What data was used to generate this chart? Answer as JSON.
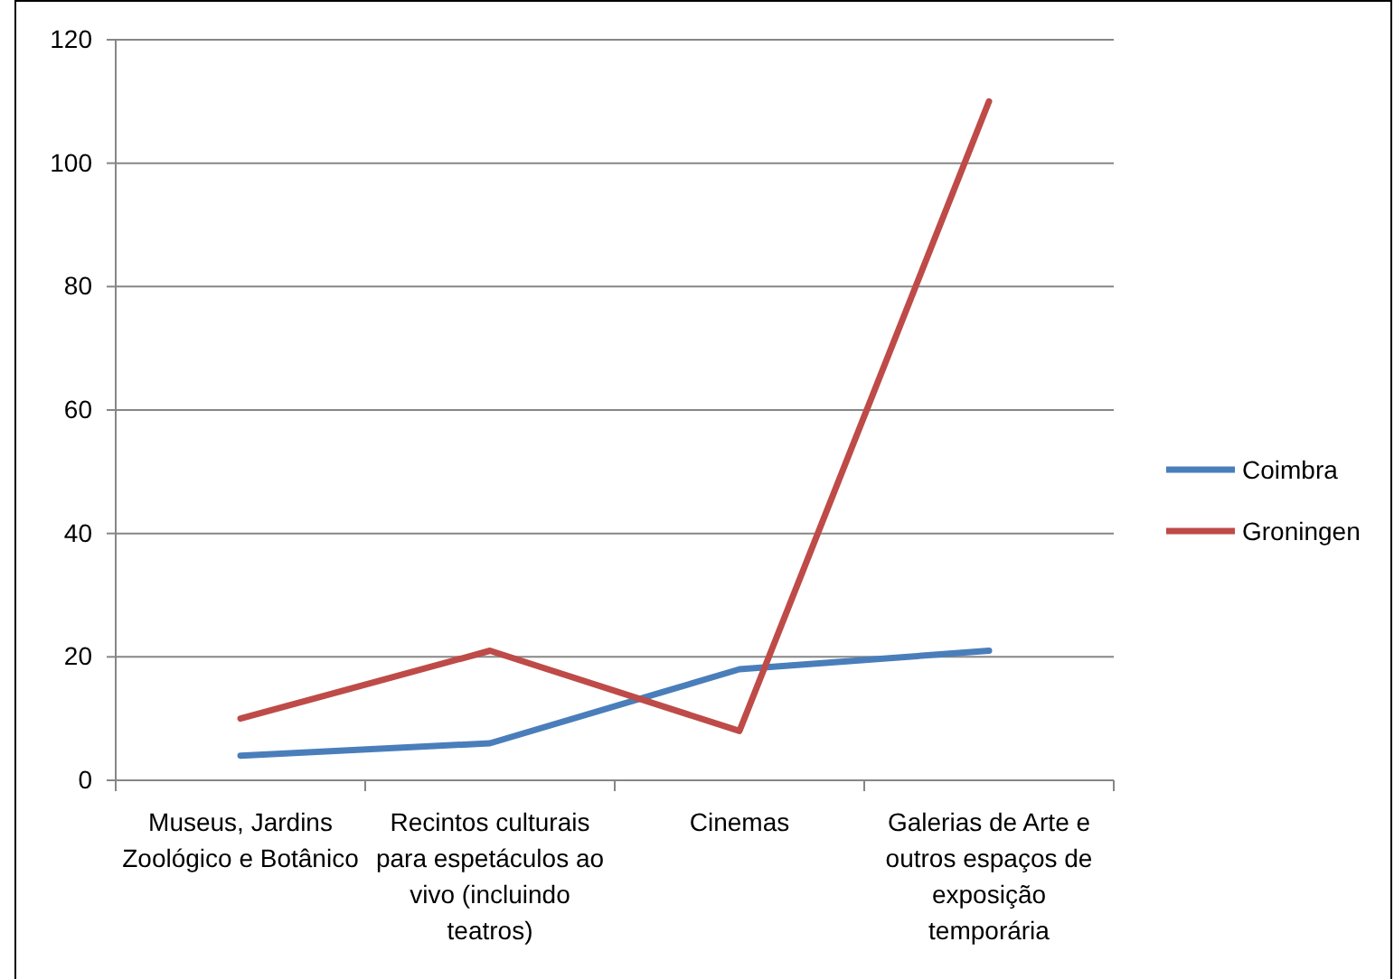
{
  "chart_data": {
    "type": "line",
    "categories": [
      "Museus, Jardins Zoológico e Botânico",
      "Recintos culturais para espetáculos ao vivo (incluindo teatros)",
      "Cinemas",
      "Galerias de Arte e outros espaços de exposição temporária"
    ],
    "series": [
      {
        "name": "Coimbra",
        "color": "#4a7ebb",
        "values": [
          4,
          6,
          18,
          21
        ]
      },
      {
        "name": "Groningen",
        "color": "#be4b48",
        "values": [
          10,
          21,
          8,
          110
        ]
      }
    ],
    "ylim": [
      0,
      120
    ],
    "yticks": [
      0,
      20,
      40,
      60,
      80,
      100,
      120
    ],
    "grid": "y",
    "legend": "right",
    "marker": "none",
    "line_style": "solid"
  }
}
